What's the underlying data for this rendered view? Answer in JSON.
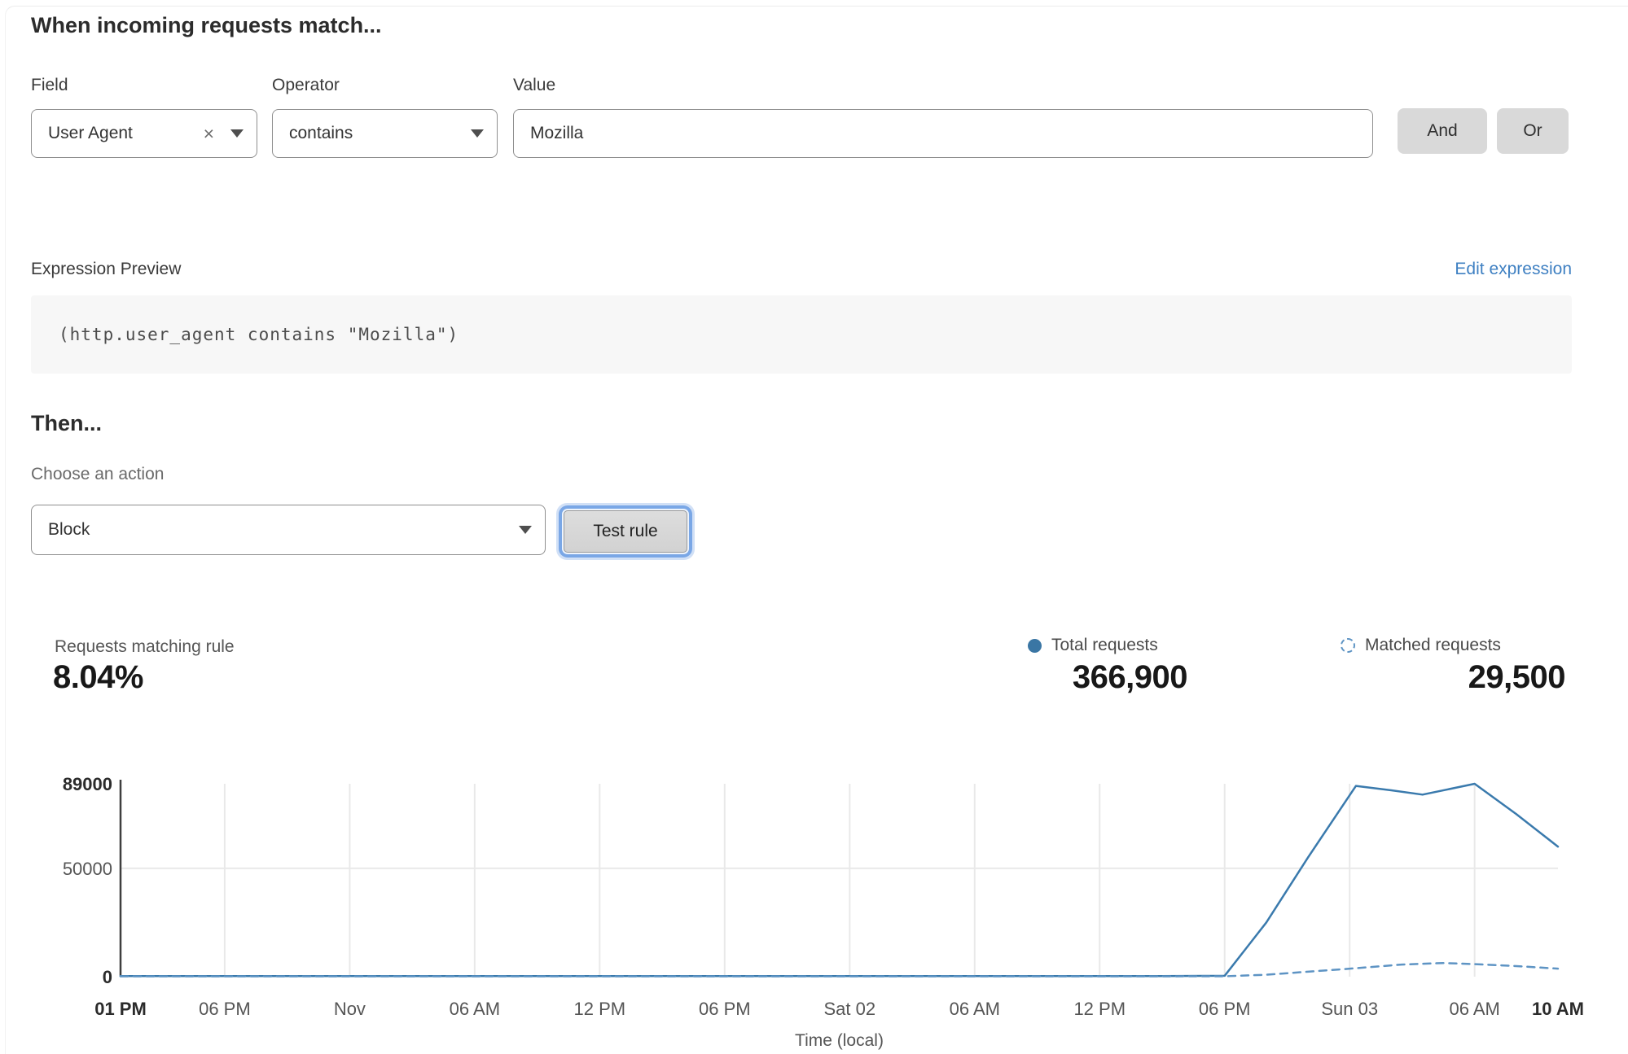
{
  "page": {
    "title": "When incoming requests match..."
  },
  "rule_builder": {
    "field": {
      "label": "Field",
      "value": "User Agent"
    },
    "operator": {
      "label": "Operator",
      "value": "contains"
    },
    "value": {
      "label": "Value",
      "value": "Mozilla"
    },
    "and_label": "And",
    "or_label": "Or"
  },
  "expression": {
    "label": "Expression Preview",
    "edit_link": "Edit expression",
    "code": "(http.user_agent contains \"Mozilla\")"
  },
  "then": {
    "heading": "Then...",
    "action_label": "Choose an action",
    "action_value": "Block",
    "test_button": "Test rule"
  },
  "stats": {
    "match": {
      "label": "Requests matching rule",
      "value": "8.04%"
    },
    "total": {
      "label": "Total requests",
      "value": "366,900"
    },
    "matched": {
      "label": "Matched requests",
      "value": "29,500"
    }
  },
  "icons": {
    "clear": "clear-x-icon",
    "dropdown": "chevron-down-icon",
    "total_legend": "solid-dot-icon",
    "matched_legend": "dashed-circle-icon"
  },
  "colors": {
    "accent_blue": "#3a76a4",
    "link_blue": "#3f80c2",
    "line_blue": "#3a7aad",
    "dashed_blue": "#5e94c4",
    "grid": "#e9e9e9",
    "axis": "#3f3f3f",
    "tick_text": "#555555",
    "tick_text_bold": "#2b2b2b"
  },
  "chart_data": {
    "type": "line",
    "xlabel": "Time (local)",
    "ylabel": "",
    "ylim": [
      0,
      89000
    ],
    "total_hours": 69,
    "grid": true,
    "yticks": [
      {
        "v": 0,
        "label": "0",
        "bold": true
      },
      {
        "v": 50000,
        "label": "50000",
        "bold": false
      },
      {
        "v": 89000,
        "label": "89000",
        "bold": true
      }
    ],
    "xticks": [
      {
        "h": 0,
        "label": "01 PM",
        "bold": true
      },
      {
        "h": 5,
        "label": "06 PM",
        "bold": false
      },
      {
        "h": 11,
        "label": "Nov",
        "bold": false
      },
      {
        "h": 17,
        "label": "06 AM",
        "bold": false
      },
      {
        "h": 23,
        "label": "12 PM",
        "bold": false
      },
      {
        "h": 29,
        "label": "06 PM",
        "bold": false
      },
      {
        "h": 35,
        "label": "Sat 02",
        "bold": false
      },
      {
        "h": 41,
        "label": "06 AM",
        "bold": false
      },
      {
        "h": 47,
        "label": "12 PM",
        "bold": false
      },
      {
        "h": 53,
        "label": "06 PM",
        "bold": false
      },
      {
        "h": 59,
        "label": "Sun 03",
        "bold": false
      },
      {
        "h": 65,
        "label": "06 AM",
        "bold": false
      },
      {
        "h": 69,
        "label": "10 AM",
        "bold": true
      }
    ],
    "series": [
      {
        "name": "Total requests",
        "style": "solid",
        "points": [
          [
            0,
            300
          ],
          [
            10,
            300
          ],
          [
            20,
            300
          ],
          [
            30,
            300
          ],
          [
            40,
            300
          ],
          [
            50,
            300
          ],
          [
            53,
            400
          ],
          [
            55,
            25000
          ],
          [
            57,
            55000
          ],
          [
            59.3,
            88000
          ],
          [
            61,
            86000
          ],
          [
            62.5,
            84000
          ],
          [
            65,
            89000
          ],
          [
            67,
            75000
          ],
          [
            69,
            60000
          ]
        ]
      },
      {
        "name": "Matched requests",
        "style": "dashed",
        "points": [
          [
            0,
            150
          ],
          [
            10,
            150
          ],
          [
            20,
            150
          ],
          [
            30,
            150
          ],
          [
            40,
            150
          ],
          [
            50,
            150
          ],
          [
            53,
            200
          ],
          [
            55,
            900
          ],
          [
            57,
            2300
          ],
          [
            59.3,
            3900
          ],
          [
            61.5,
            5600
          ],
          [
            63.5,
            6300
          ],
          [
            65,
            5800
          ],
          [
            67,
            4900
          ],
          [
            69,
            3700
          ]
        ]
      }
    ]
  }
}
